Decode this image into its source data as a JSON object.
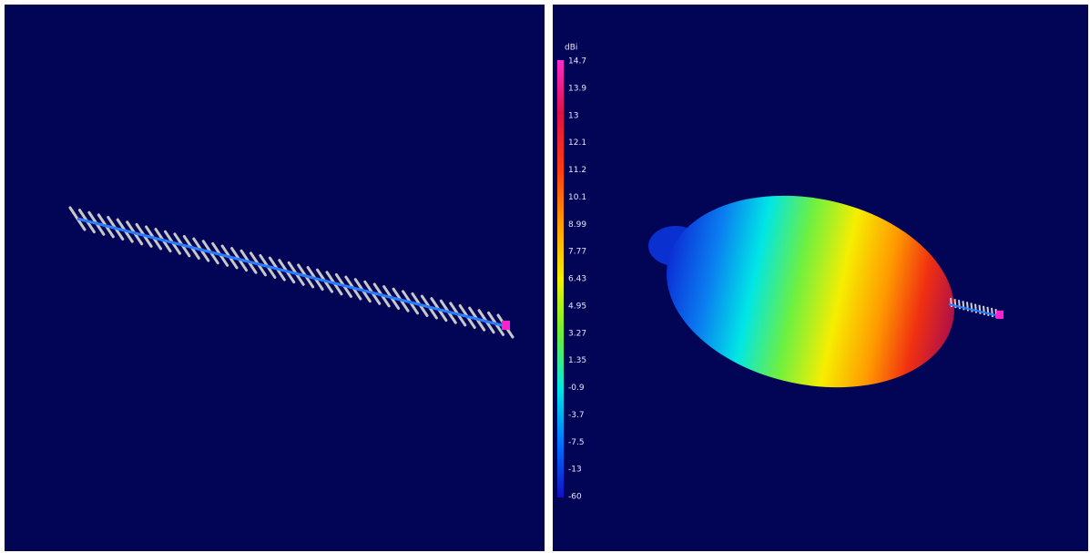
{
  "colorbar": {
    "unit": "dBi",
    "labels": [
      "14.7",
      "13.9",
      "13",
      "12.1",
      "11.2",
      "10.1",
      "8.99",
      "7.77",
      "6.43",
      "4.95",
      "3.27",
      "1.35",
      "-0.9",
      "-3.7",
      "-7.5",
      "-13",
      "-60"
    ]
  }
}
